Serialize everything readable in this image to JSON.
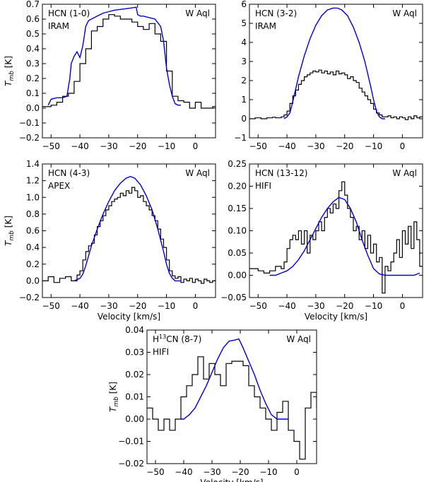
{
  "chart_data": [
    {
      "type": "line",
      "line_name": "HCN (1-0)",
      "sup": "",
      "line_rest": "",
      "telescope": "IRAM",
      "star": "W Aql",
      "xlabel": "",
      "ylabel": "T_mb [K]",
      "xlim": [
        -53,
        7
      ],
      "ylim": [
        -0.2,
        0.7
      ],
      "xticks": [
        -50,
        -40,
        -30,
        -20,
        -10,
        0
      ],
      "xtick_labels": [
        "−50",
        "−40",
        "−30",
        "−20",
        "−10",
        "0"
      ],
      "yticks": [
        -0.2,
        -0.1,
        0.0,
        0.1,
        0.2,
        0.3,
        0.4,
        0.5,
        0.6,
        0.7
      ],
      "ytick_labels": [
        "−0.2",
        "−0.1",
        "0.0",
        "0.1",
        "0.2",
        "0.3",
        "0.4",
        "0.5",
        "0.6",
        "0.7"
      ],
      "series": [
        {
          "name": "observed",
          "style": "step",
          "color": "#000000",
          "x": [
            -53,
            -50,
            -48,
            -46,
            -44,
            -42,
            -40,
            -38,
            -36,
            -34,
            -32,
            -30,
            -28,
            -26,
            -24,
            -22,
            -20,
            -18,
            -16,
            -14,
            -12,
            -10,
            -8,
            -6,
            -4,
            -2,
            0,
            2,
            4,
            6
          ],
          "y": [
            0.01,
            0.02,
            0.04,
            0.08,
            0.1,
            0.18,
            0.3,
            0.4,
            0.52,
            0.55,
            0.6,
            0.63,
            0.62,
            0.6,
            0.6,
            0.58,
            0.55,
            0.53,
            0.57,
            0.5,
            0.45,
            0.25,
            0.08,
            0.05,
            0.04,
            0.0,
            0.04,
            0.0,
            0.0,
            0.01
          ]
        },
        {
          "name": "model",
          "style": "line",
          "color": "#0000cc",
          "x": [
            -51,
            -50,
            -48,
            -46,
            -44.5,
            -43.5,
            -43,
            -42,
            -41,
            -40,
            -39,
            -38,
            -37,
            -36,
            -35,
            -34,
            -33,
            -32,
            -30,
            -28,
            -26,
            -24,
            -22,
            -20.5,
            -20,
            -19,
            -18,
            -16,
            -14,
            -12,
            -11,
            -10,
            -9,
            -8,
            -7,
            -6,
            -5
          ],
          "y": [
            0.02,
            0.06,
            0.07,
            0.07,
            0.08,
            0.2,
            0.3,
            0.35,
            0.38,
            0.34,
            0.42,
            0.55,
            0.59,
            0.6,
            0.61,
            0.62,
            0.63,
            0.64,
            0.65,
            0.66,
            0.665,
            0.67,
            0.675,
            0.68,
            0.63,
            0.62,
            0.62,
            0.61,
            0.6,
            0.55,
            0.45,
            0.27,
            0.16,
            0.08,
            0.03,
            0.02,
            0.02
          ]
        }
      ]
    },
    {
      "type": "line",
      "line_name": "HCN (3-2)",
      "sup": "",
      "line_rest": "",
      "telescope": "IRAM",
      "star": "W Aql",
      "xlabel": "",
      "ylabel": "",
      "xlim": [
        -53,
        7
      ],
      "ylim": [
        -1,
        6
      ],
      "xticks": [
        -50,
        -40,
        -30,
        -20,
        -10,
        0
      ],
      "xtick_labels": [
        "−50",
        "−40",
        "−30",
        "−20",
        "−10",
        "0"
      ],
      "yticks": [
        -1,
        0,
        1,
        2,
        3,
        4,
        5,
        6
      ],
      "ytick_labels": [
        "−1",
        "0",
        "1",
        "2",
        "3",
        "4",
        "5",
        "6"
      ],
      "series": [
        {
          "name": "observed",
          "style": "step",
          "color": "#000000",
          "x": [
            -53,
            -51,
            -49,
            -47,
            -45,
            -44,
            -42,
            -41,
            -40,
            -39,
            -38,
            -37,
            -36,
            -35,
            -34,
            -33,
            -32,
            -31,
            -30,
            -29,
            -28,
            -27,
            -26,
            -25,
            -24,
            -23,
            -22,
            -21,
            -20,
            -19,
            -18,
            -17,
            -16,
            -15,
            -14,
            -13,
            -12,
            -11,
            -10,
            -9,
            -8,
            -7,
            -6,
            -5,
            -4,
            -3,
            -2,
            -1,
            0,
            1,
            2,
            3,
            4,
            5,
            6
          ],
          "y": [
            0.0,
            0.05,
            0.0,
            0.05,
            0.08,
            0.05,
            0.1,
            0.2,
            0.4,
            0.8,
            1.2,
            1.5,
            1.8,
            2.0,
            2.2,
            2.3,
            2.4,
            2.5,
            2.45,
            2.55,
            2.4,
            2.5,
            2.35,
            2.45,
            2.3,
            2.5,
            2.35,
            2.4,
            2.3,
            2.1,
            2.2,
            2.0,
            1.9,
            1.6,
            1.4,
            1.2,
            1.0,
            0.8,
            0.5,
            0.3,
            0.2,
            0.1,
            0.1,
            0.15,
            0.05,
            0.1,
            0.0,
            0.1,
            0.05,
            -0.05,
            0.1,
            0.0,
            0.15,
            0.05,
            0.1
          ]
        },
        {
          "name": "model",
          "style": "line",
          "color": "#0000cc",
          "x": [
            -41,
            -40,
            -39,
            -38,
            -36,
            -34,
            -32,
            -30,
            -28,
            -26,
            -24,
            -22.5,
            -21,
            -19,
            -17,
            -15,
            -13,
            -11,
            -10,
            -9,
            -8,
            -7,
            -6
          ],
          "y": [
            0.0,
            0.1,
            0.3,
            0.9,
            2.2,
            3.3,
            4.2,
            4.9,
            5.4,
            5.7,
            5.8,
            5.8,
            5.7,
            5.4,
            4.8,
            4.0,
            3.0,
            1.7,
            1.0,
            0.4,
            0.1,
            0.0,
            0.0
          ]
        }
      ]
    },
    {
      "type": "line",
      "line_name": "HCN (4-3)",
      "sup": "",
      "line_rest": "",
      "telescope": "APEX",
      "star": "W Aql",
      "xlabel": "Velocity [km/s]",
      "ylabel": "T_mb [K]",
      "xlim": [
        -53,
        7
      ],
      "ylim": [
        -0.2,
        1.4
      ],
      "xticks": [
        -50,
        -40,
        -30,
        -20,
        -10,
        0
      ],
      "xtick_labels": [
        "−50",
        "−40",
        "−30",
        "−20",
        "−10",
        "0"
      ],
      "yticks": [
        -0.2,
        0.0,
        0.2,
        0.4,
        0.6,
        0.8,
        1.0,
        1.2,
        1.4
      ],
      "ytick_labels": [
        "−0.2",
        "0.0",
        "0.2",
        "0.4",
        "0.6",
        "0.8",
        "1.0",
        "1.2",
        "1.4"
      ],
      "series": [
        {
          "name": "observed",
          "style": "step",
          "color": "#000000",
          "x": [
            -53,
            -51,
            -49,
            -47,
            -45,
            -43,
            -41,
            -40,
            -39,
            -38,
            -37,
            -36,
            -35,
            -34,
            -33,
            -32,
            -31,
            -30,
            -29,
            -28,
            -27,
            -26,
            -25,
            -24,
            -23,
            -22,
            -21,
            -20,
            -19,
            -18,
            -17,
            -16,
            -15,
            -14,
            -13,
            -12,
            -11,
            -10,
            -9,
            -8,
            -7,
            -6,
            -5,
            -4,
            -3,
            -2,
            -1,
            0,
            1,
            2,
            3,
            4,
            5,
            6
          ],
          "y": [
            0.0,
            0.05,
            -0.02,
            0.03,
            0.05,
            0.0,
            0.07,
            0.12,
            0.25,
            0.35,
            0.42,
            0.45,
            0.55,
            0.65,
            0.72,
            0.78,
            0.85,
            0.9,
            0.95,
            0.98,
            1.0,
            1.05,
            1.02,
            1.08,
            1.05,
            1.12,
            1.08,
            1.0,
            1.02,
            0.95,
            0.9,
            0.85,
            0.78,
            0.72,
            0.62,
            0.5,
            0.4,
            0.25,
            0.12,
            0.06,
            0.03,
            0.05,
            -0.02,
            0.02,
            0.0,
            0.03,
            -0.02,
            0.02,
            0.0,
            -0.03,
            0.02,
            0.0,
            -0.02,
            0.0
          ]
        },
        {
          "name": "model",
          "style": "line",
          "color": "#0000cc",
          "x": [
            -42,
            -40,
            -39,
            -38,
            -36,
            -34,
            -32,
            -30,
            -28,
            -26,
            -24,
            -22.5,
            -21,
            -19,
            -17,
            -15,
            -13,
            -11,
            -10,
            -9,
            -8,
            -7,
            -5
          ],
          "y": [
            0.0,
            0.03,
            0.08,
            0.18,
            0.42,
            0.62,
            0.8,
            0.95,
            1.08,
            1.17,
            1.23,
            1.25,
            1.23,
            1.15,
            1.02,
            0.85,
            0.62,
            0.35,
            0.2,
            0.09,
            0.03,
            0.0,
            0.0
          ]
        }
      ]
    },
    {
      "type": "line",
      "line_name": "HCN (13-12)",
      "sup": "",
      "line_rest": "",
      "telescope": "HIFI",
      "star": "W Aql",
      "xlabel": "Velocity [km/s]",
      "ylabel": "",
      "xlim": [
        -53,
        7
      ],
      "ylim": [
        -0.05,
        0.25
      ],
      "xticks": [
        -50,
        -40,
        -30,
        -20,
        -10,
        0
      ],
      "xtick_labels": [
        "−50",
        "−40",
        "−30",
        "−20",
        "−10",
        "0"
      ],
      "yticks": [
        -0.05,
        0.0,
        0.05,
        0.1,
        0.15,
        0.2,
        0.25
      ],
      "ytick_labels": [
        "−0.05",
        "0.00",
        "0.05",
        "0.10",
        "0.15",
        "0.20",
        "0.25"
      ],
      "series": [
        {
          "name": "observed",
          "style": "step",
          "color": "#000000",
          "x": [
            -53,
            -50,
            -48,
            -46,
            -44,
            -42,
            -41,
            -40,
            -39,
            -38,
            -37,
            -36,
            -35,
            -34,
            -33,
            -32,
            -31,
            -30,
            -29,
            -28,
            -27,
            -26,
            -25,
            -24,
            -23,
            -22,
            -21,
            -20,
            -19,
            -18,
            -17,
            -16,
            -15,
            -14,
            -13,
            -12,
            -11,
            -10,
            -9,
            -8,
            -7,
            -6,
            -5,
            -4,
            -3,
            -2,
            -1,
            0,
            1,
            2,
            3,
            4,
            5,
            6
          ],
          "y": [
            0.015,
            0.01,
            0.005,
            0.01,
            0.02,
            0.015,
            0.03,
            0.06,
            0.08,
            0.09,
            0.08,
            0.1,
            0.07,
            0.1,
            0.05,
            0.09,
            0.08,
            0.1,
            0.12,
            0.1,
            0.13,
            0.15,
            0.14,
            0.16,
            0.15,
            0.19,
            0.21,
            0.18,
            0.15,
            0.13,
            0.1,
            0.11,
            0.08,
            0.1,
            0.06,
            0.09,
            0.05,
            0.07,
            0.03,
            0.04,
            -0.04,
            0.02,
            0.01,
            0.03,
            0.05,
            0.08,
            0.04,
            0.1,
            0.07,
            0.11,
            0.06,
            0.12,
            0.08,
            0.02
          ]
        },
        {
          "name": "model",
          "style": "line",
          "color": "#0000cc",
          "x": [
            -46,
            -44,
            -42,
            -40,
            -38,
            -36,
            -34,
            -32,
            -30,
            -28,
            -26,
            -24,
            -22,
            -20,
            -18,
            -16,
            -14,
            -12,
            -10,
            -8,
            -6,
            -4,
            -2,
            0,
            2,
            4,
            6
          ],
          "y": [
            0.0,
            0.0,
            0.005,
            0.01,
            0.02,
            0.035,
            0.055,
            0.08,
            0.105,
            0.13,
            0.15,
            0.165,
            0.175,
            0.17,
            0.15,
            0.12,
            0.08,
            0.045,
            0.015,
            0.003,
            0.0,
            0.0,
            0.0,
            0.0,
            0.0,
            0.0,
            0.005
          ]
        }
      ]
    },
    {
      "type": "line",
      "line_name": "H",
      "sup": "13",
      "line_rest": "CN (8-7)",
      "telescope": "HIFI",
      "star": "W Aql",
      "xlabel": "Velocity [km/s]",
      "ylabel": "T_mb [K]",
      "xlim": [
        -53,
        7
      ],
      "ylim": [
        -0.02,
        0.04
      ],
      "xticks": [
        -50,
        -40,
        -30,
        -20,
        -10,
        0
      ],
      "xtick_labels": [
        "−50",
        "−40",
        "−30",
        "−20",
        "−10",
        "0"
      ],
      "yticks": [
        -0.02,
        -0.01,
        0.0,
        0.01,
        0.02,
        0.03,
        0.04
      ],
      "ytick_labels": [
        "−0.02",
        "−0.01",
        "0.00",
        "0.01",
        "0.02",
        "0.03",
        "0.04"
      ],
      "series": [
        {
          "name": "observed",
          "style": "step",
          "color": "#000000",
          "x": [
            -53,
            -51,
            -49,
            -47,
            -45,
            -43,
            -41,
            -39,
            -37,
            -35,
            -33,
            -31,
            -29,
            -27,
            -25,
            -23,
            -21,
            -19,
            -17,
            -15,
            -13,
            -11,
            -9,
            -7,
            -5,
            -3,
            -1,
            1,
            3,
            5,
            7
          ],
          "y": [
            0.005,
            0.0,
            -0.005,
            0.0,
            -0.005,
            0.0,
            0.01,
            0.015,
            0.02,
            0.028,
            0.018,
            0.025,
            0.02,
            0.015,
            0.025,
            0.026,
            0.026,
            0.024,
            0.015,
            0.01,
            0.005,
            0.0,
            -0.005,
            0.003,
            0.008,
            -0.005,
            -0.01,
            -0.018,
            0.005,
            0.012,
            0.005
          ]
        },
        {
          "name": "model",
          "style": "line",
          "color": "#0000cc",
          "x": [
            -41,
            -40,
            -38,
            -36,
            -34,
            -32,
            -30,
            -28,
            -26,
            -24,
            -22,
            -20.5,
            -19,
            -17,
            -15,
            -13,
            -11,
            -9,
            -7,
            -5,
            -3
          ],
          "y": [
            0.0,
            0.0,
            0.002,
            0.005,
            0.01,
            0.015,
            0.021,
            0.027,
            0.032,
            0.035,
            0.0355,
            0.036,
            0.032,
            0.026,
            0.02,
            0.013,
            0.007,
            0.002,
            0.0,
            0.0,
            0.0
          ]
        }
      ]
    }
  ]
}
